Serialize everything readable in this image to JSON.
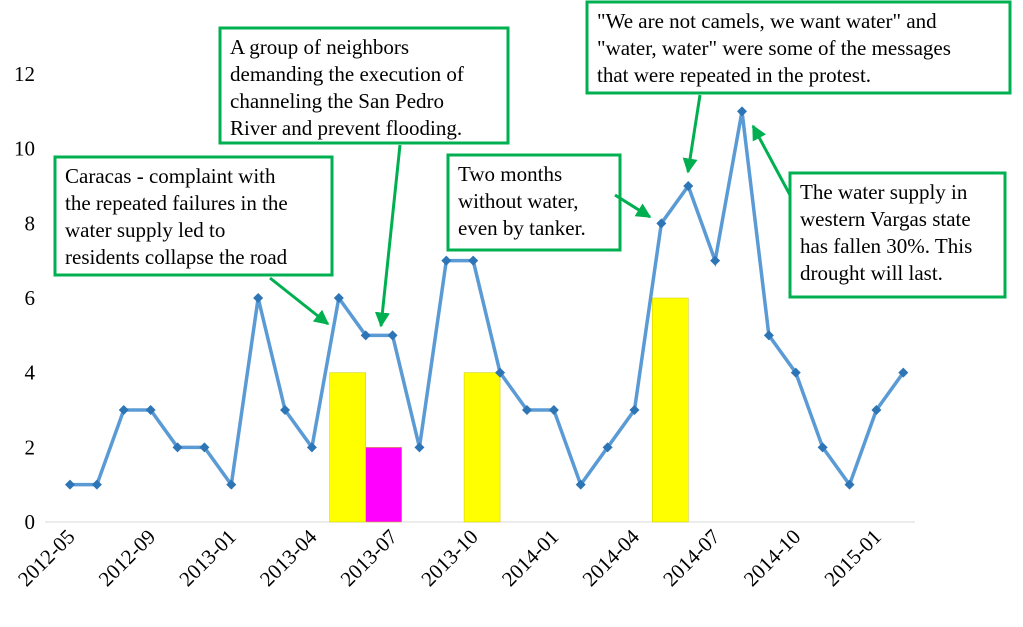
{
  "chart_data": {
    "type": "line",
    "categories": [
      "2012-05",
      null,
      null,
      "2012-09",
      null,
      null,
      "2013-01",
      null,
      null,
      "2013-04",
      null,
      null,
      "2013-07",
      null,
      null,
      "2013-10",
      null,
      null,
      "2014-01",
      null,
      null,
      "2014-04",
      null,
      null,
      "2014-07",
      null,
      null,
      "2014-10",
      null,
      null,
      "2015-01",
      null
    ],
    "series": [
      {
        "color": "#5b9bd5",
        "marker_color": "#2e75b6",
        "values": [
          1,
          1,
          3,
          3,
          2,
          2,
          1,
          6,
          3,
          2,
          6,
          5,
          5,
          2,
          7,
          7,
          4,
          3,
          3,
          1,
          2,
          3,
          8,
          9,
          7,
          11,
          5,
          4,
          2,
          1,
          3,
          4
        ]
      }
    ],
    "bars": [
      {
        "color": "#ffff00",
        "values": [
          null,
          null,
          null,
          null,
          null,
          null,
          null,
          null,
          null,
          null,
          null,
          4,
          null,
          null,
          null,
          null,
          4,
          null,
          null,
          null,
          null,
          null,
          null,
          6,
          null,
          null,
          null,
          null,
          null,
          null,
          null,
          null
        ]
      },
      {
        "color": "#ff00ff",
        "values": [
          null,
          null,
          null,
          null,
          null,
          null,
          null,
          null,
          null,
          null,
          null,
          2,
          null,
          null,
          null,
          null,
          null,
          null,
          null,
          null,
          null,
          null,
          null,
          null,
          null,
          null,
          null,
          null,
          null,
          null,
          null,
          null
        ]
      }
    ],
    "ylim": [
      0,
      12
    ],
    "yticks": [
      0,
      2,
      4,
      6,
      8,
      10,
      12
    ],
    "annotations": [
      {
        "lines": [
          "Caracas - complaint with",
          "the repeated failures in the",
          "water supply led to",
          "residents collapse the road"
        ]
      },
      {
        "lines": [
          "A group of neighbors",
          "demanding the execution of",
          "channeling the San Pedro",
          "River and prevent flooding."
        ]
      },
      {
        "lines": [
          "Two months",
          "without water,",
          "even by tanker."
        ]
      },
      {
        "lines": [
          "\"We are not camels, we want water\" and",
          "\"water, water\" were some of the messages",
          "that were repeated in the protest."
        ]
      },
      {
        "lines": [
          "The water supply in",
          "western Vargas state",
          "has fallen 30%. This",
          "drought will last."
        ]
      }
    ]
  }
}
